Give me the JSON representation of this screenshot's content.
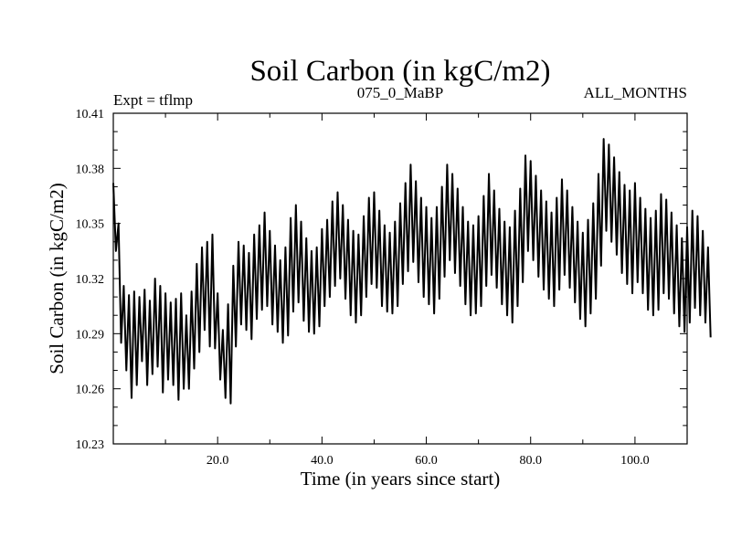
{
  "chart_data": {
    "type": "line",
    "title": "Soil Carbon (in kgC/m2)",
    "subtitle_left": "Expt = tflmp",
    "subtitle_center": "075_0_MaBP",
    "subtitle_right": "ALL_MONTHS",
    "xlabel": "Time (in years since start)",
    "ylabel": "Soil Carbon (in kgC/m2)",
    "xlim": [
      0,
      110
    ],
    "ylim": [
      10.23,
      10.41
    ],
    "x_ticks": [
      20,
      40,
      60,
      80,
      100
    ],
    "x_tick_labels": [
      "20.0",
      "40.0",
      "60.0",
      "80.0",
      "100.0"
    ],
    "y_ticks": [
      10.23,
      10.26,
      10.29,
      10.32,
      10.35,
      10.38,
      10.41
    ],
    "y_tick_labels": [
      "10.23",
      "10.26",
      "10.29",
      "10.32",
      "10.35",
      "10.38",
      "10.41"
    ],
    "series": [
      {
        "name": "Soil Carbon",
        "color": "#000000",
        "year_start": 0,
        "points_per_year": 2,
        "values": [
          10.372,
          10.335,
          10.35,
          10.285,
          10.316,
          10.27,
          10.311,
          10.255,
          10.313,
          10.262,
          10.31,
          10.275,
          10.314,
          10.262,
          10.308,
          10.268,
          10.32,
          10.272,
          10.316,
          10.258,
          10.312,
          10.265,
          10.307,
          10.262,
          10.309,
          10.254,
          10.312,
          10.26,
          10.3,
          10.26,
          10.313,
          10.271,
          10.328,
          10.28,
          10.337,
          10.292,
          10.34,
          10.283,
          10.344,
          10.282,
          10.312,
          10.265,
          10.292,
          10.255,
          10.306,
          10.252,
          10.327,
          10.283,
          10.34,
          10.295,
          10.338,
          10.292,
          10.334,
          10.287,
          10.344,
          10.298,
          10.349,
          10.303,
          10.356,
          10.305,
          10.346,
          10.295,
          10.338,
          10.291,
          10.33,
          10.285,
          10.337,
          10.289,
          10.353,
          10.302,
          10.36,
          10.307,
          10.351,
          10.297,
          10.342,
          10.291,
          10.335,
          10.29,
          10.337,
          10.294,
          10.347,
          10.305,
          10.352,
          10.31,
          10.362,
          10.316,
          10.367,
          10.32,
          10.36,
          10.309,
          10.352,
          10.3,
          10.346,
          10.296,
          10.344,
          10.3,
          10.354,
          10.31,
          10.364,
          10.317,
          10.367,
          10.315,
          10.357,
          10.305,
          10.349,
          10.302,
          10.345,
          10.301,
          10.351,
          10.305,
          10.361,
          10.317,
          10.372,
          10.324,
          10.382,
          10.329,
          10.373,
          10.318,
          10.364,
          10.31,
          10.359,
          10.306,
          10.353,
          10.301,
          10.359,
          10.309,
          10.37,
          10.321,
          10.382,
          10.33,
          10.377,
          10.323,
          10.369,
          10.316,
          10.359,
          10.306,
          10.351,
          10.3,
          10.349,
          10.301,
          10.354,
          10.305,
          10.365,
          10.316,
          10.377,
          10.322,
          10.368,
          10.315,
          10.358,
          10.306,
          10.351,
          10.3,
          10.348,
          10.296,
          10.357,
          10.305,
          10.369,
          10.318,
          10.387,
          10.335,
          10.384,
          10.33,
          10.376,
          10.321,
          10.368,
          10.314,
          10.362,
          10.309,
          10.356,
          10.305,
          10.364,
          10.314,
          10.374,
          10.322,
          10.368,
          10.315,
          10.359,
          10.307,
          10.351,
          10.298,
          10.345,
          10.294,
          10.352,
          10.301,
          10.361,
          10.309,
          10.377,
          10.327,
          10.396,
          10.346,
          10.393,
          10.34,
          10.386,
          10.333,
          10.378,
          10.323,
          10.371,
          10.317,
          10.368,
          10.312,
          10.372,
          10.318,
          10.364,
          10.312,
          10.358,
          10.303,
          10.353,
          10.3,
          10.357,
          10.303,
          10.366,
          10.312,
          10.363,
          10.309,
          10.356,
          10.301,
          10.349,
          10.294,
          10.342,
          10.291,
          10.348,
          10.296,
          10.357,
          10.304,
          10.354,
          10.3,
          10.346,
          10.296,
          10.337,
          10.288
        ]
      }
    ]
  }
}
